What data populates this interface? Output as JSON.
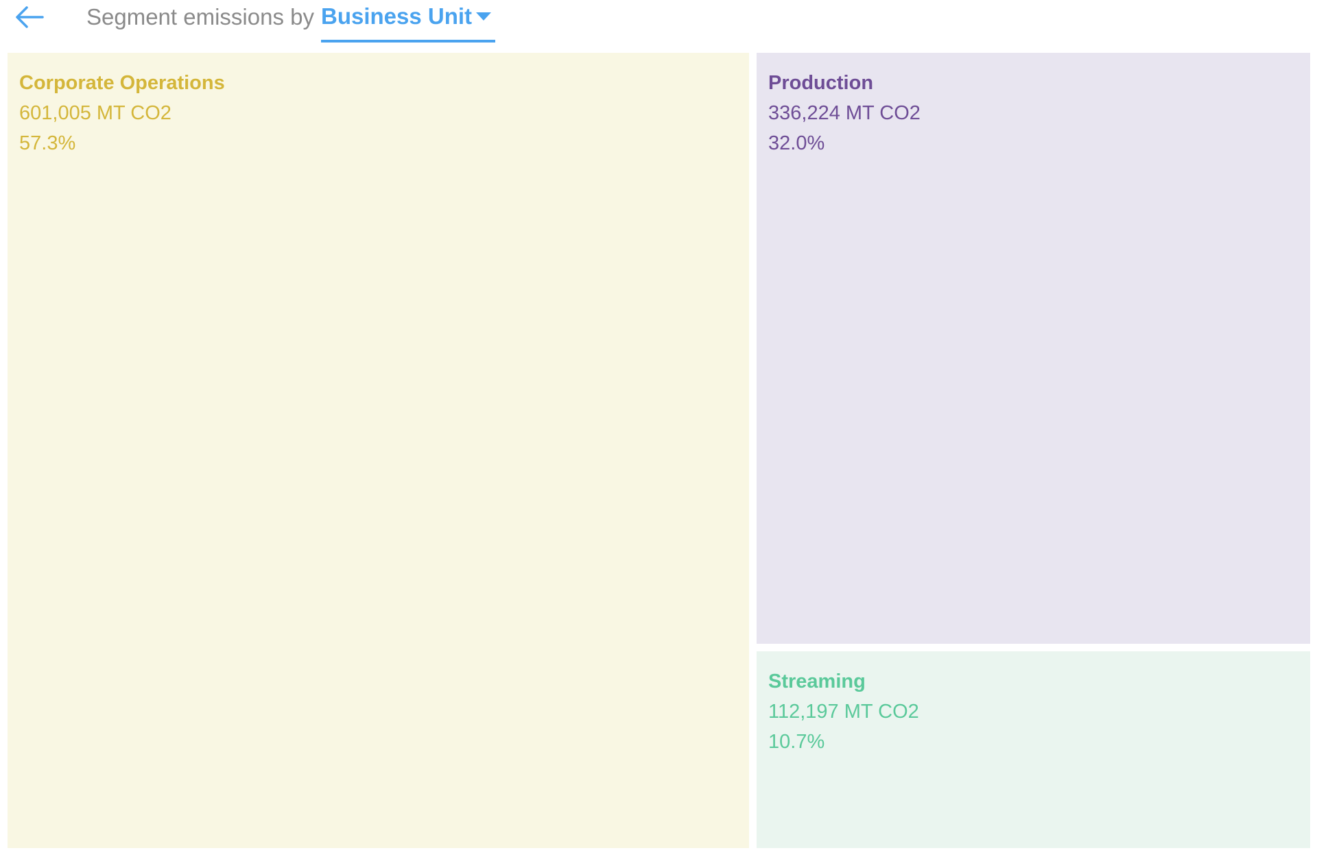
{
  "header": {
    "back_label": "",
    "title_prefix": "Segment emissions by",
    "dimension": "Business Unit"
  },
  "icons": {
    "back": "arrow-left-icon",
    "dropdown": "caret-down-icon"
  },
  "colors": {
    "accent": "#4aa3ef",
    "corporate_text": "#d4b63a",
    "corporate_bg": "#f9f7e3",
    "production_text": "#6e4d96",
    "production_bg": "#e8e5f0",
    "streaming_text": "#5ac99a",
    "streaming_bg": "#eaf5ef"
  },
  "chart_data": {
    "type": "treemap",
    "unit": "MT CO2",
    "segments": [
      {
        "name": "Corporate Operations",
        "value": 601005,
        "value_label": "601,005 MT CO2",
        "percent": 57.3,
        "percent_label": "57.3%",
        "color": "#d4b63a",
        "bg": "#f9f7e3"
      },
      {
        "name": "Production",
        "value": 336224,
        "value_label": "336,224 MT CO2",
        "percent": 32.0,
        "percent_label": "32.0%",
        "color": "#6e4d96",
        "bg": "#e8e5f0"
      },
      {
        "name": "Streaming",
        "value": 112197,
        "value_label": "112,197 MT CO2",
        "percent": 10.7,
        "percent_label": "10.7%",
        "color": "#5ac99a",
        "bg": "#eaf5ef"
      }
    ]
  }
}
